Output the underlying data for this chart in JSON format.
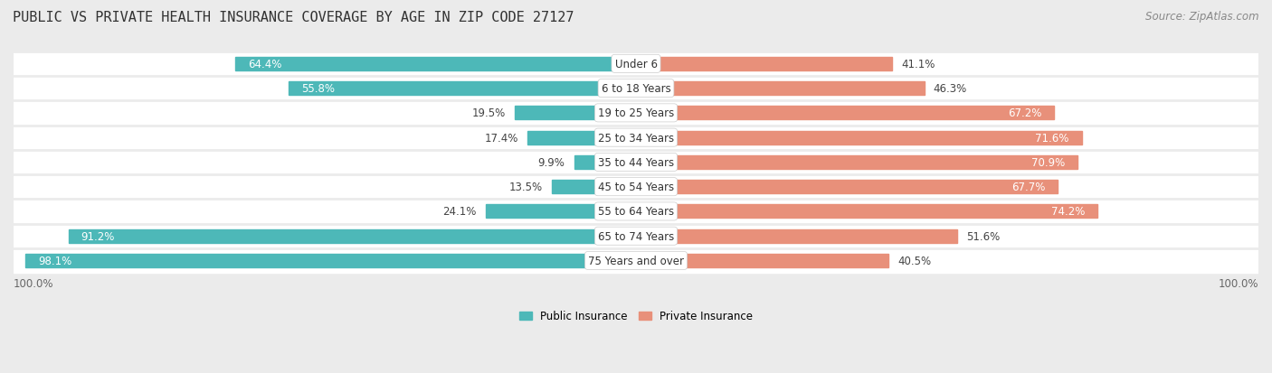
{
  "title": "PUBLIC VS PRIVATE HEALTH INSURANCE COVERAGE BY AGE IN ZIP CODE 27127",
  "source": "Source: ZipAtlas.com",
  "categories": [
    "Under 6",
    "6 to 18 Years",
    "19 to 25 Years",
    "25 to 34 Years",
    "35 to 44 Years",
    "45 to 54 Years",
    "55 to 64 Years",
    "65 to 74 Years",
    "75 Years and over"
  ],
  "public_values": [
    64.4,
    55.8,
    19.5,
    17.4,
    9.9,
    13.5,
    24.1,
    91.2,
    98.1
  ],
  "private_values": [
    41.1,
    46.3,
    67.2,
    71.6,
    70.9,
    67.7,
    74.2,
    51.6,
    40.5
  ],
  "public_color": "#4DB8B8",
  "private_color": "#E8907A",
  "public_label": "Public Insurance",
  "private_label": "Private Insurance",
  "bg_color": "#EBEBEB",
  "row_bg_color": "#FFFFFF",
  "bar_height": 0.55,
  "max_val": 100.0,
  "left_label": "100.0%",
  "right_label": "100.0%",
  "title_fontsize": 11,
  "source_fontsize": 8.5,
  "label_fontsize": 8.5,
  "category_fontsize": 8.5,
  "value_fontsize": 8.5
}
